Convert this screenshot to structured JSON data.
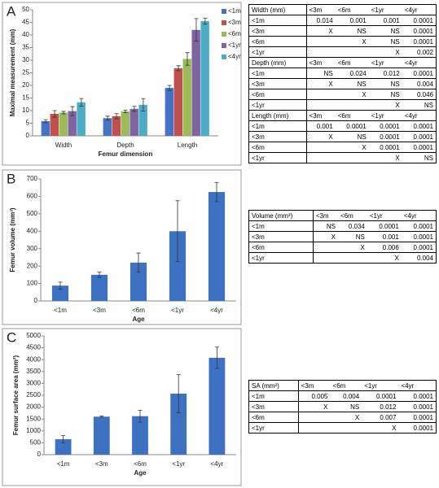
{
  "chart_data": [
    {
      "type": "bar",
      "panel": "A",
      "y_label": "Maximal  measurement (mm)",
      "x_label": "Femur dimension",
      "categories": [
        "Width",
        "Depth",
        "Length"
      ],
      "series": [
        {
          "name": "<1m",
          "color": "#4472c4",
          "values": [
            5.8,
            7,
            19
          ],
          "errors": [
            0.6,
            0.8,
            1
          ]
        },
        {
          "name": "<3m",
          "color": "#c0504d",
          "values": [
            8.7,
            7.8,
            26.8
          ],
          "errors": [
            1.3,
            1,
            1
          ]
        },
        {
          "name": "<6m",
          "color": "#9bbb59",
          "values": [
            9.2,
            9.7,
            30.5
          ],
          "errors": [
            0.5,
            0.5,
            2.5
          ]
        },
        {
          "name": "<1yr",
          "color": "#8064a2",
          "values": [
            9.8,
            10.7,
            42
          ],
          "errors": [
            1.8,
            1,
            4.5
          ]
        },
        {
          "name": "<4yr",
          "color": "#4bacc6",
          "values": [
            13.3,
            12.3,
            45.5
          ],
          "errors": [
            1.5,
            2.5,
            1.2
          ]
        }
      ],
      "ylim": [
        0,
        50
      ],
      "yticks": [
        0,
        5,
        10,
        15,
        20,
        25,
        30,
        35,
        40,
        45,
        50
      ],
      "grid": false,
      "legend": "right"
    },
    {
      "type": "bar",
      "panel": "B",
      "y_label": "Femur volume (mm³)",
      "x_label": "Age",
      "categories": [
        "<1m",
        "<3m",
        "<6m",
        "<1yr",
        "<4yr"
      ],
      "color": "#3d72c2",
      "values": [
        88,
        150,
        220,
        400,
        625
      ],
      "errors": [
        20,
        15,
        55,
        175,
        55
      ],
      "ylim": [
        0,
        700
      ],
      "yticks": [
        0,
        100,
        200,
        300,
        400,
        500,
        600,
        700
      ],
      "grid": false
    },
    {
      "type": "bar",
      "panel": "C",
      "y_label": "Femur surface area (mm²)",
      "x_label": "Age",
      "categories": [
        "<1m",
        "<3m",
        "<6m",
        "<1yr",
        "<4yr"
      ],
      "color": "#3d72c2",
      "values": [
        650,
        1600,
        1620,
        2570,
        4080
      ],
      "errors": [
        150,
        30,
        250,
        800,
        450
      ],
      "ylim": [
        0,
        5000
      ],
      "yticks": [
        0,
        500,
        1000,
        1500,
        2000,
        2500,
        3000,
        3500,
        4000,
        4500,
        5000
      ],
      "grid": false
    }
  ],
  "tables": [
    {
      "sections": [
        {
          "header": [
            "Width (mm)",
            "<3m",
            "<6m",
            "<1yr",
            "<4yr"
          ],
          "rows": [
            [
              "<1m",
              "0.014",
              "0.001",
              "0.001",
              "0.0001"
            ],
            [
              "<3m",
              "X",
              "NS",
              "NS",
              "0.0001"
            ],
            [
              "<6m",
              null,
              "X",
              "NS",
              "0.0001"
            ],
            [
              "<1yr",
              null,
              null,
              "X",
              "0.002"
            ]
          ]
        },
        {
          "header": [
            "Depth (mm)",
            "<3m",
            "<6m",
            "<1yr",
            "<4yr"
          ],
          "rows": [
            [
              "<1m",
              "NS",
              "0.024",
              "0.012",
              "0.0001"
            ],
            [
              "<3m",
              "X",
              "NS",
              "NS",
              "0.004"
            ],
            [
              "<6m",
              null,
              "X",
              "NS",
              "0.046"
            ],
            [
              "<1yr",
              null,
              null,
              "X",
              "NS"
            ]
          ]
        },
        {
          "header": [
            "Length (mm)",
            "<3m",
            "<6m",
            "<1yr",
            "<4yr"
          ],
          "rows": [
            [
              "<1m",
              "0.001",
              "0.0001",
              "0.0001",
              "0.0001"
            ],
            [
              "<3m",
              "X",
              "NS",
              "0.0001",
              "0.0001"
            ],
            [
              "<6m",
              null,
              "X",
              "0.0001",
              "0.0001"
            ],
            [
              "<1yr",
              null,
              null,
              "X",
              "NS"
            ]
          ]
        }
      ]
    },
    {
      "sections": [
        {
          "header": [
            "Volume (mm³)",
            "<3m",
            "<6m",
            "<1yr",
            "<4yr"
          ],
          "rows": [
            [
              "<1m",
              "NS",
              "0.034",
              "0.0001",
              "0.0001"
            ],
            [
              "<3m",
              "X",
              "NS",
              "0.001",
              "0.0001"
            ],
            [
              "<6m",
              null,
              "X",
              "0.006",
              "0.0001"
            ],
            [
              "<1yr",
              null,
              null,
              "X",
              "0.004"
            ]
          ]
        }
      ]
    },
    {
      "sections": [
        {
          "header": [
            "SA (mm²)",
            "<3m",
            "<6m",
            "<1yr",
            "<4yr"
          ],
          "rows": [
            [
              "<1m",
              "0.005",
              "0.004",
              "0.0001",
              "0.0001"
            ],
            [
              "<3m",
              "X",
              "NS",
              "0.012",
              "0.0001"
            ],
            [
              "<6m",
              null,
              "X",
              "0.007",
              "0.0001"
            ],
            [
              "<1yr",
              null,
              null,
              "X",
              "0.0001"
            ]
          ]
        }
      ]
    }
  ]
}
